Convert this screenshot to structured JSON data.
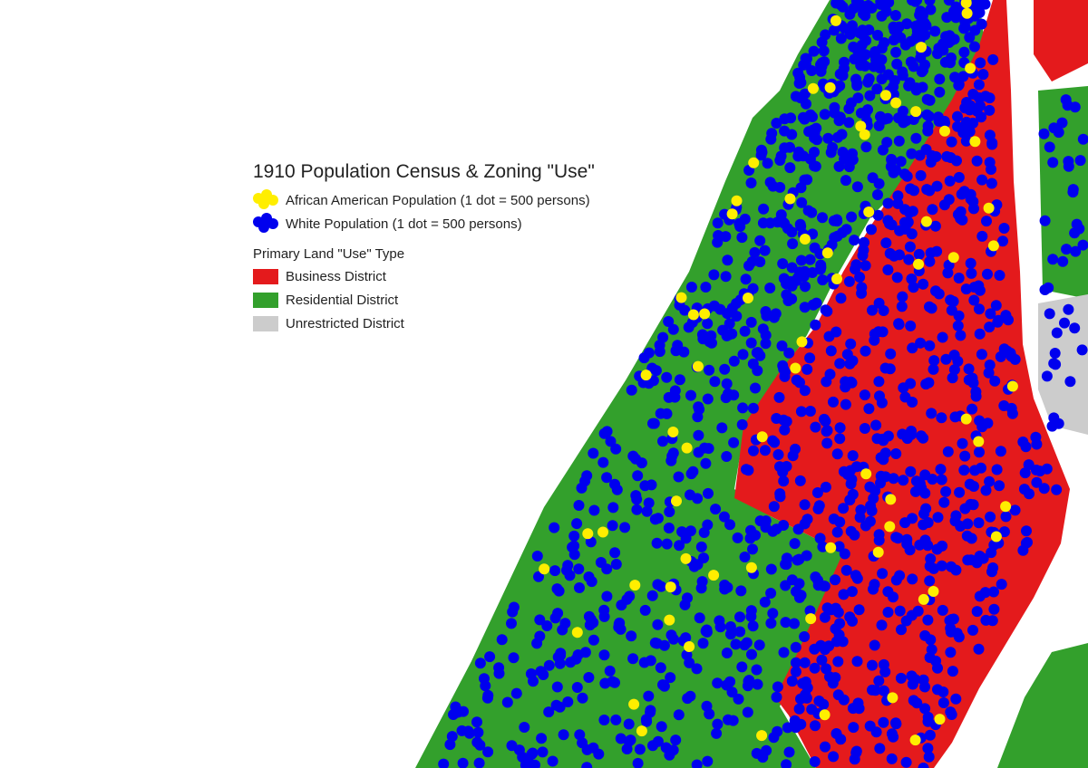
{
  "legend": {
    "title": "1910 Population Census & Zoning \"Use\"",
    "dot_items": [
      {
        "label": "African American Population (1 dot = 500 persons)",
        "color": "#ffee00"
      },
      {
        "label": "White Population (1 dot = 500 persons)",
        "color": "#0000ee"
      }
    ],
    "land_use_title": "Primary Land \"Use\" Type",
    "land_use_items": [
      {
        "label": "Business District",
        "color": "#e41a1c"
      },
      {
        "label": "Residential District",
        "color": "#33a02c"
      },
      {
        "label": "Unrestricted District",
        "color": "#cccccc"
      }
    ]
  }
}
